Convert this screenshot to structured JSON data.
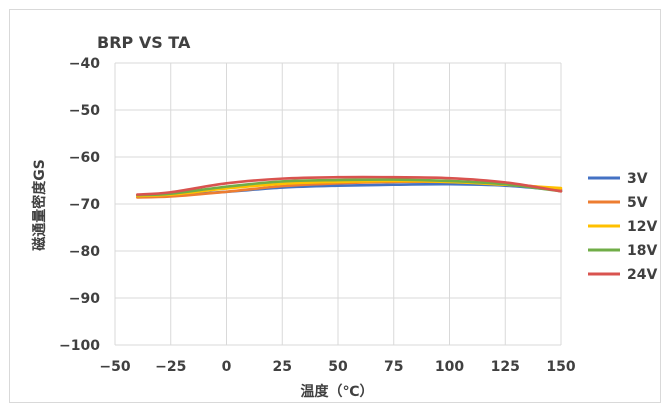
{
  "chart_data": {
    "type": "line",
    "title": "BRP VS TA",
    "xlabel": "温度（℃）",
    "ylabel": "磁通量密度GS",
    "xlim": [
      -50,
      150
    ],
    "ylim": [
      -100,
      -40
    ],
    "xticks": [
      -50,
      -25,
      0,
      25,
      50,
      75,
      100,
      125,
      150
    ],
    "yticks": [
      -40,
      -50,
      -60,
      -70,
      -80,
      -90,
      -100
    ],
    "xtick_labels": [
      "−50",
      "−25",
      "0",
      "25",
      "50",
      "75",
      "100",
      "125",
      "150"
    ],
    "ytick_labels": [
      "−40",
      "−50",
      "−60",
      "−70",
      "−80",
      "−90",
      "−100"
    ],
    "grid": true,
    "legend_position": "right",
    "series": [
      {
        "name": "3V",
        "color": "#4472C4",
        "x": [
          -40,
          -25,
          0,
          25,
          50,
          75,
          100,
          125,
          150
        ],
        "y": [
          -68.3,
          -68.1,
          -67.4,
          -66.5,
          -66.1,
          -65.9,
          -65.8,
          -66.1,
          -67.1
        ]
      },
      {
        "name": "5V",
        "color": "#ED7D31",
        "x": [
          -40,
          -25,
          0,
          25,
          50,
          75,
          100,
          125,
          150
        ],
        "y": [
          -68.6,
          -68.4,
          -67.4,
          -66.2,
          -65.6,
          -65.3,
          -65.3,
          -65.7,
          -66.9
        ]
      },
      {
        "name": "12V",
        "color": "#FFC000",
        "x": [
          -40,
          -25,
          0,
          25,
          50,
          75,
          100,
          125,
          150
        ],
        "y": [
          -68.3,
          -68.0,
          -66.7,
          -65.7,
          -65.3,
          -65.1,
          -65.3,
          -65.9,
          -66.6
        ]
      },
      {
        "name": "18V",
        "color": "#70AD47",
        "x": [
          -40,
          -25,
          0,
          25,
          50,
          75,
          100,
          125,
          150
        ],
        "y": [
          -68.1,
          -67.8,
          -66.3,
          -65.2,
          -64.9,
          -64.8,
          -65.1,
          -65.8,
          -67.3
        ]
      },
      {
        "name": "24V",
        "color": "#D9534F",
        "x": [
          -40,
          -25,
          0,
          25,
          50,
          75,
          100,
          125,
          150
        ],
        "y": [
          -68.0,
          -67.5,
          -65.6,
          -64.6,
          -64.3,
          -64.3,
          -64.5,
          -65.4,
          -67.3
        ]
      }
    ]
  }
}
